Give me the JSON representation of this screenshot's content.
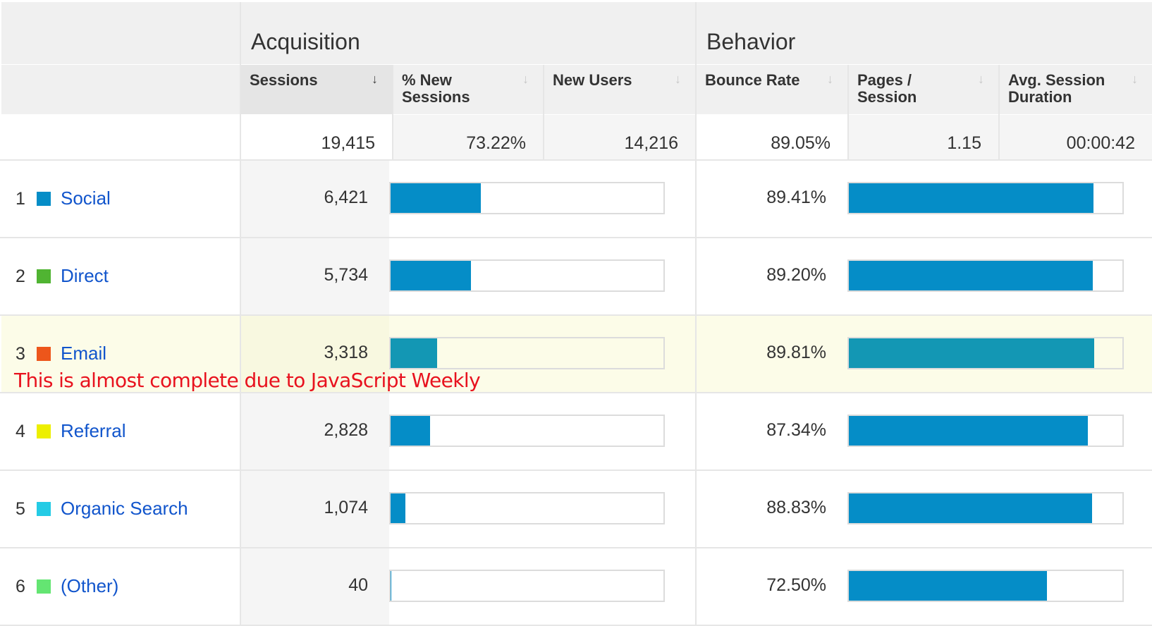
{
  "groups": {
    "acquisition": "Acquisition",
    "behavior": "Behavior"
  },
  "columns": [
    {
      "label": "Sessions",
      "sorted": true
    },
    {
      "label": "% New\nSessions",
      "sorted": false
    },
    {
      "label": "New Users",
      "sorted": false
    },
    {
      "label": "Bounce Rate",
      "sorted": false
    },
    {
      "label": "Pages /\nSession",
      "sorted": false
    },
    {
      "label": "Avg. Session\nDuration",
      "sorted": false
    }
  ],
  "sort_icon": "↓",
  "totals": {
    "sessions": "19,415",
    "pct_new_sessions": "73.22%",
    "new_users": "14,216",
    "bounce_rate": "89.05%",
    "pages_per_session": "1.15",
    "avg_session_duration": "00:00:42"
  },
  "rows": [
    {
      "index": "1",
      "channel": "Social",
      "color": "#058dc7",
      "sessions": "6,421",
      "sessions_fraction": 0.3307,
      "bounce_rate": "89.41%",
      "bounce_fraction": 0.8941,
      "highlight": false
    },
    {
      "index": "2",
      "channel": "Direct",
      "color": "#50b432",
      "sessions": "5,734",
      "sessions_fraction": 0.2953,
      "bounce_rate": "89.20%",
      "bounce_fraction": 0.892,
      "highlight": false
    },
    {
      "index": "3",
      "channel": "Email",
      "color": "#ed561b",
      "sessions": "3,318",
      "sessions_fraction": 0.1709,
      "bounce_rate": "89.81%",
      "bounce_fraction": 0.8981,
      "highlight": true
    },
    {
      "index": "4",
      "channel": "Referral",
      "color": "#edef00",
      "sessions": "2,828",
      "sessions_fraction": 0.1457,
      "bounce_rate": "87.34%",
      "bounce_fraction": 0.8734,
      "highlight": false
    },
    {
      "index": "5",
      "channel": "Organic Search",
      "color": "#24cbe5",
      "sessions": "1,074",
      "sessions_fraction": 0.0553,
      "bounce_rate": "88.83%",
      "bounce_fraction": 0.8883,
      "highlight": false
    },
    {
      "index": "6",
      "channel": "(Other)",
      "color": "#64e572",
      "sessions": "40",
      "sessions_fraction": 0.0021,
      "bounce_rate": "72.50%",
      "bounce_fraction": 0.725,
      "highlight": false
    }
  ],
  "annotation": "This is almost complete due to JavaScript Weekly"
}
